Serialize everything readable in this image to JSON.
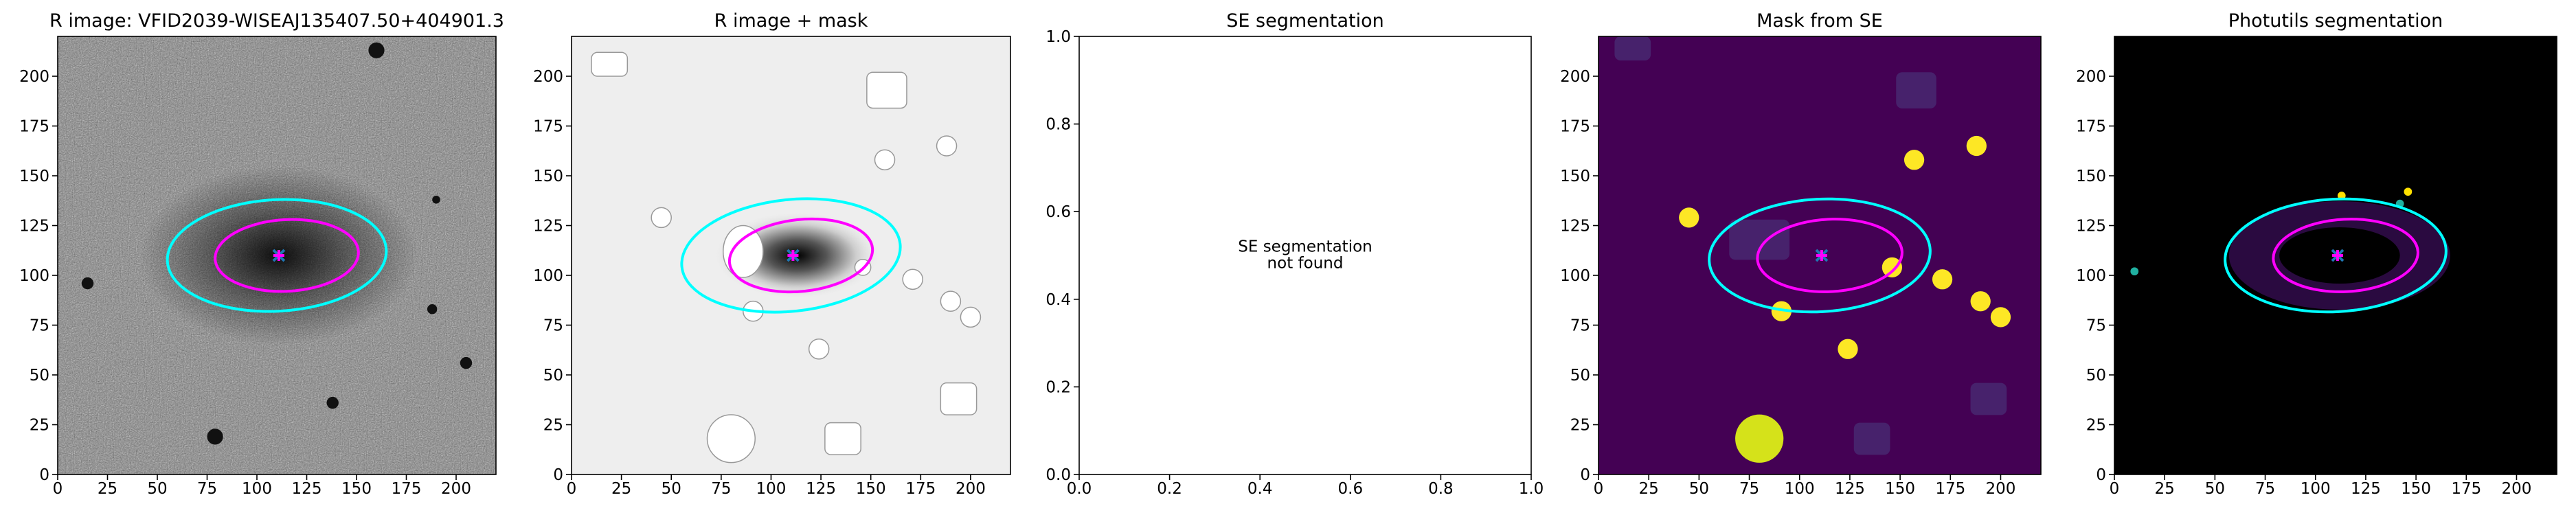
{
  "chart_data": [
    {
      "type": "image",
      "title": "R image: VFID2039-WISEAJ135407.50+404901.3",
      "xlim": [
        0,
        220
      ],
      "ylim": [
        0,
        220
      ],
      "xticks": [
        0,
        25,
        50,
        75,
        100,
        125,
        150,
        175,
        200
      ],
      "yticks": [
        0,
        25,
        50,
        75,
        100,
        125,
        150,
        175,
        200
      ]
    },
    {
      "type": "image",
      "title": "R image + mask",
      "xlim": [
        0,
        220
      ],
      "ylim": [
        0,
        220
      ],
      "xticks": [
        0,
        25,
        50,
        75,
        100,
        125,
        150,
        175,
        200
      ],
      "yticks": [
        0,
        25,
        50,
        75,
        100,
        125,
        150,
        175,
        200
      ]
    },
    {
      "type": "empty",
      "title": "SE segmentation",
      "annotation": [
        "SE segmentation",
        "not found"
      ],
      "xlim": [
        0,
        1
      ],
      "ylim": [
        0,
        1
      ],
      "xticks": [
        {
          "value": 0,
          "label": "0.0"
        },
        {
          "value": 0.2,
          "label": "0.2"
        },
        {
          "value": 0.4,
          "label": "0.4"
        },
        {
          "value": 0.6,
          "label": "0.6"
        },
        {
          "value": 0.8,
          "label": "0.8"
        },
        {
          "value": 1,
          "label": "1.0"
        }
      ],
      "yticks": [
        {
          "value": 0,
          "label": "0.0"
        },
        {
          "value": 0.2,
          "label": "0.2"
        },
        {
          "value": 0.4,
          "label": "0.4"
        },
        {
          "value": 0.6,
          "label": "0.6"
        },
        {
          "value": 0.8,
          "label": "0.8"
        },
        {
          "value": 1,
          "label": "1.0"
        }
      ]
    },
    {
      "type": "image",
      "title": "Mask from SE",
      "xlim": [
        0,
        220
      ],
      "ylim": [
        0,
        220
      ],
      "xticks": [
        0,
        25,
        50,
        75,
        100,
        125,
        150,
        175,
        200
      ],
      "yticks": [
        0,
        25,
        50,
        75,
        100,
        125,
        150,
        175,
        200
      ]
    },
    {
      "type": "image",
      "title": "Photutils segmentation",
      "xlim": [
        0,
        220
      ],
      "ylim": [
        0,
        220
      ],
      "xticks": [
        0,
        25,
        50,
        75,
        100,
        125,
        150,
        175,
        200
      ],
      "yticks": [
        0,
        25,
        50,
        75,
        100,
        125,
        150,
        175,
        200
      ]
    }
  ]
}
